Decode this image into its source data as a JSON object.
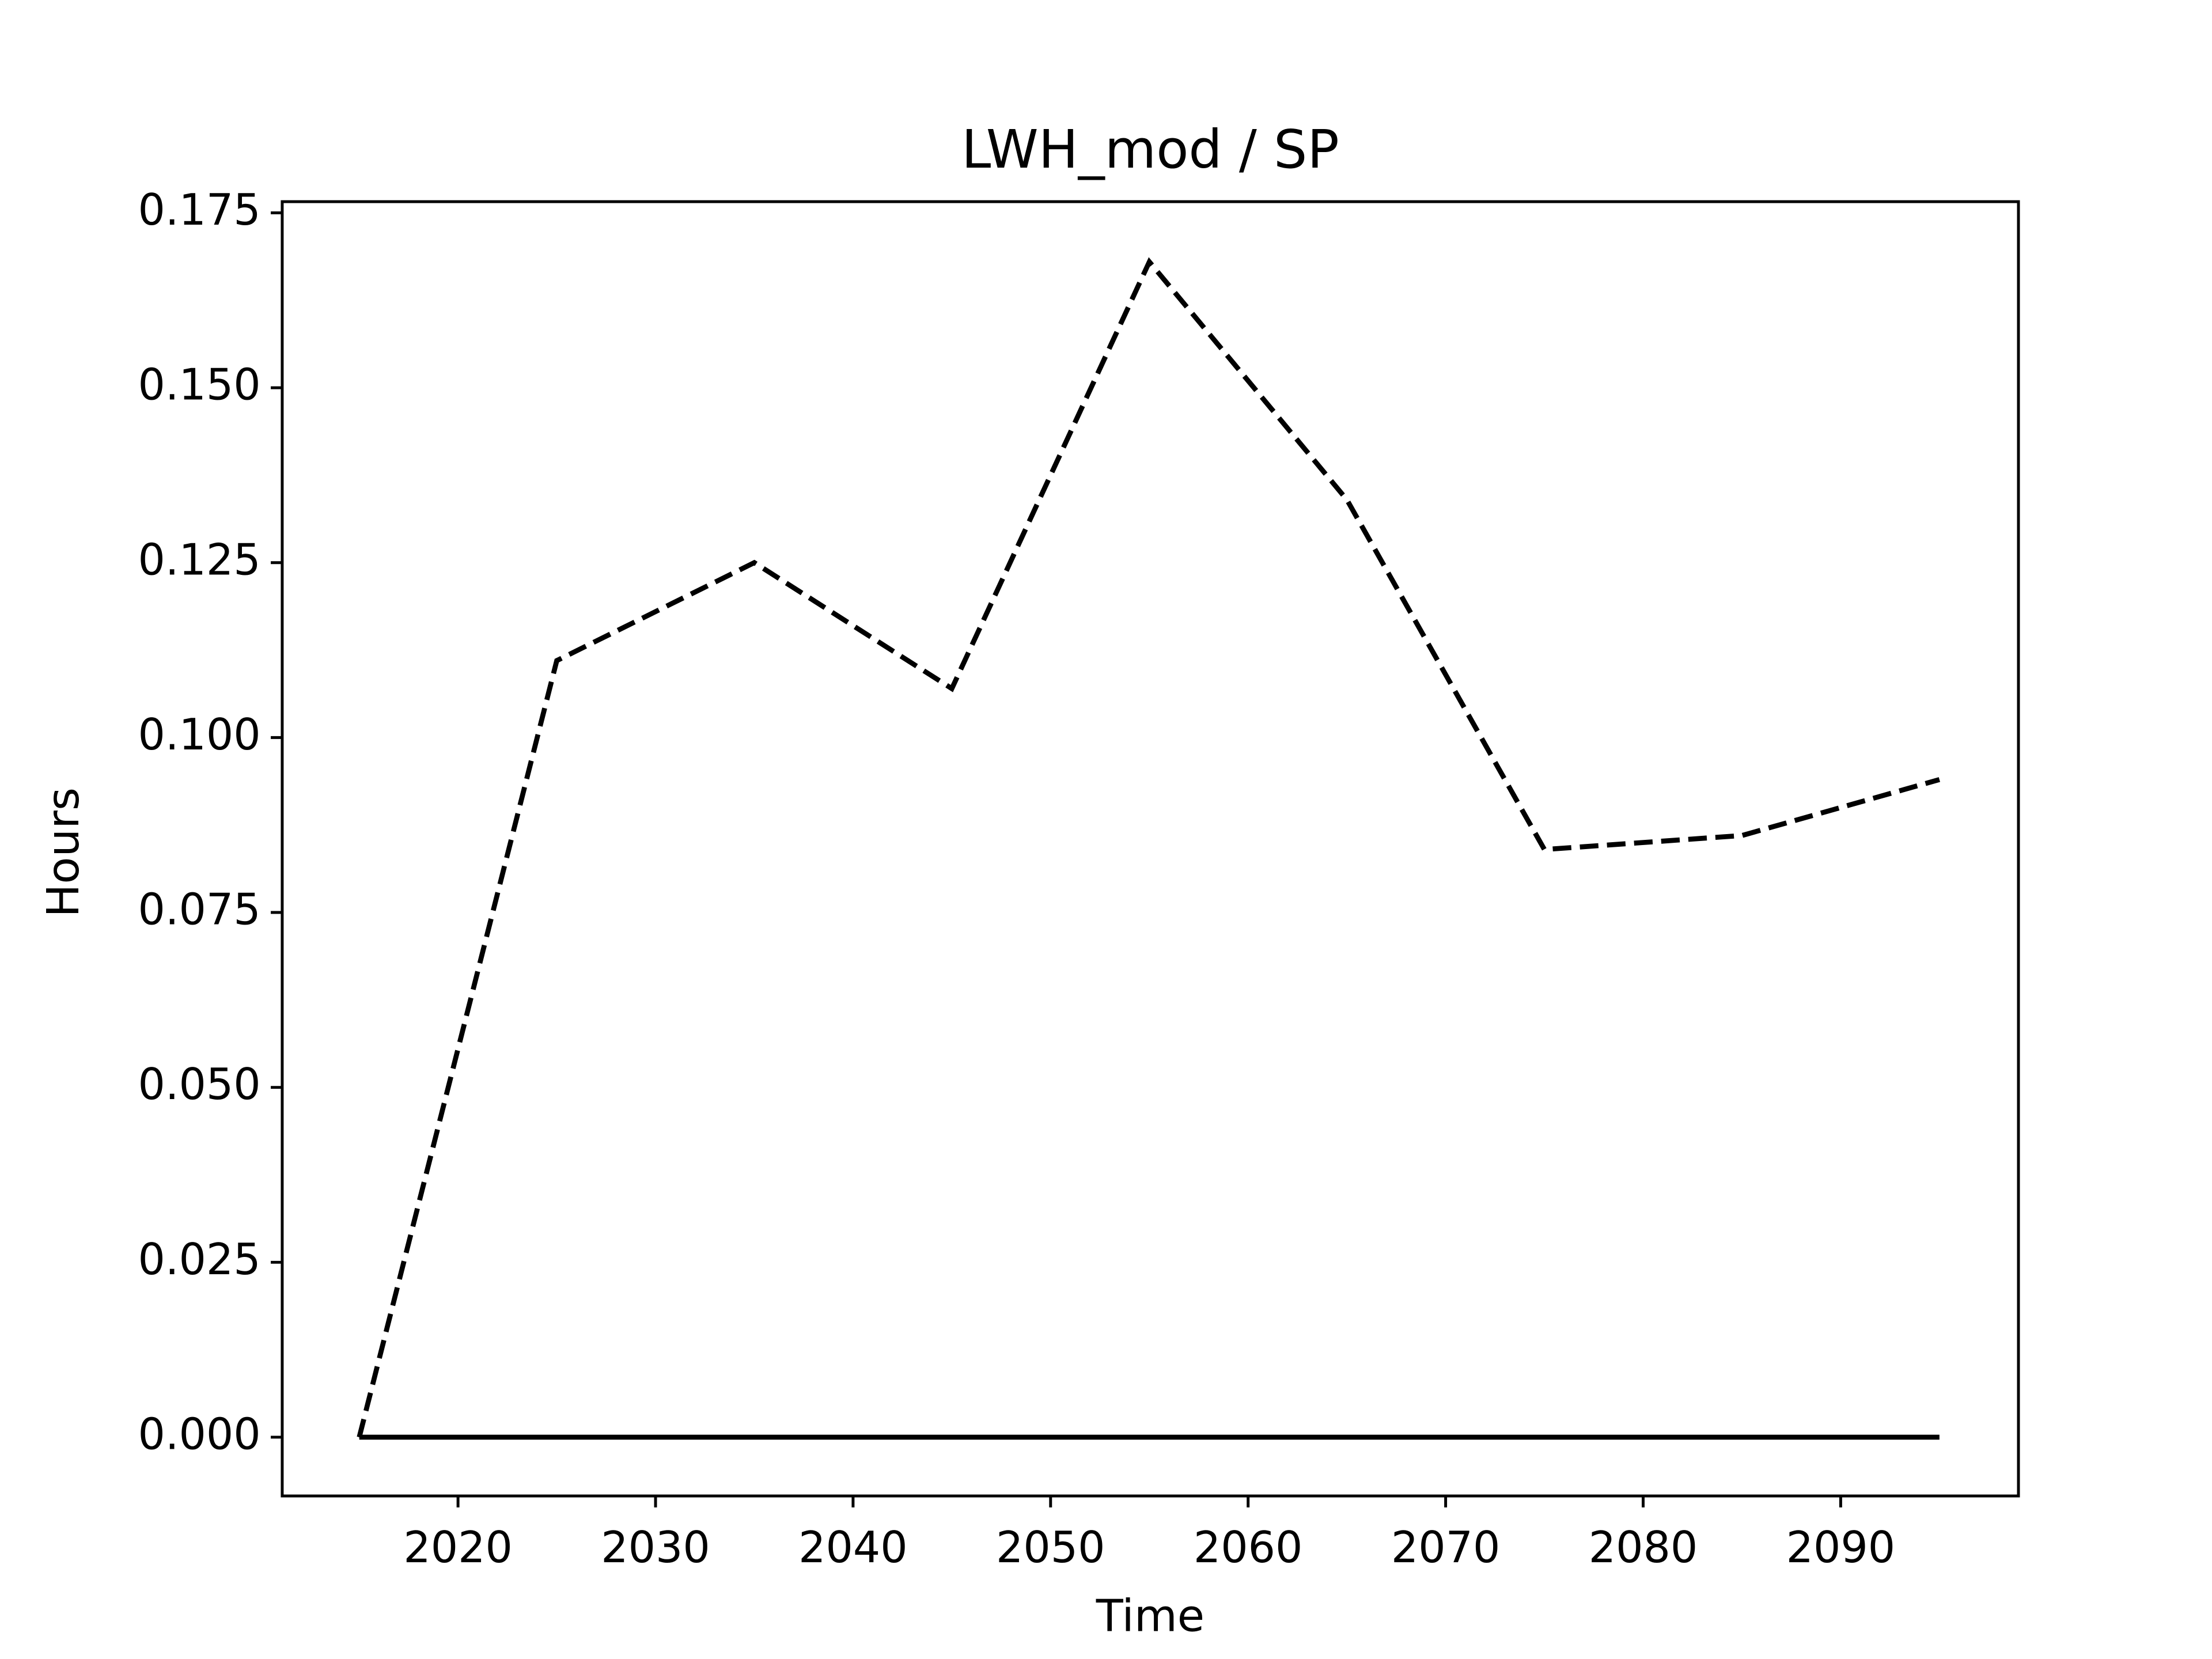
{
  "chart_data": {
    "type": "line",
    "title": "LWH_mod / SP",
    "xlabel": "Time",
    "ylabel": "Hours",
    "x": [
      2015,
      2025,
      2035,
      2045,
      2055,
      2065,
      2075,
      2085,
      2095
    ],
    "series": [
      {
        "color": "#000000",
        "linestyle": "dashed",
        "values": [
          0.0,
          0.111,
          0.125,
          0.107,
          0.168,
          0.134,
          0.084,
          0.086,
          0.094
        ]
      },
      {
        "color": "#000000",
        "linestyle": "solid",
        "values": [
          0.0,
          0.0,
          0.0,
          0.0,
          0.0,
          0.0,
          0.0,
          0.0,
          0.0
        ]
      }
    ],
    "xlim": [
      2011.1,
      2099.0
    ],
    "ylim": [
      -0.0084,
      0.1766
    ],
    "xticks": [
      2020,
      2030,
      2040,
      2050,
      2060,
      2070,
      2080,
      2090
    ],
    "yticks": [
      {
        "value": 0,
        "label": "0.000"
      },
      {
        "value": 0.025,
        "label": "0.025"
      },
      {
        "value": 0.05,
        "label": "0.050"
      },
      {
        "value": 0.075,
        "label": "0.075"
      },
      {
        "value": 0.1,
        "label": "0.100"
      },
      {
        "value": 0.125,
        "label": "0.125"
      },
      {
        "value": 0.15,
        "label": "0.150"
      },
      {
        "value": 0.175,
        "label": "0.175"
      }
    ],
    "grid": false
  }
}
